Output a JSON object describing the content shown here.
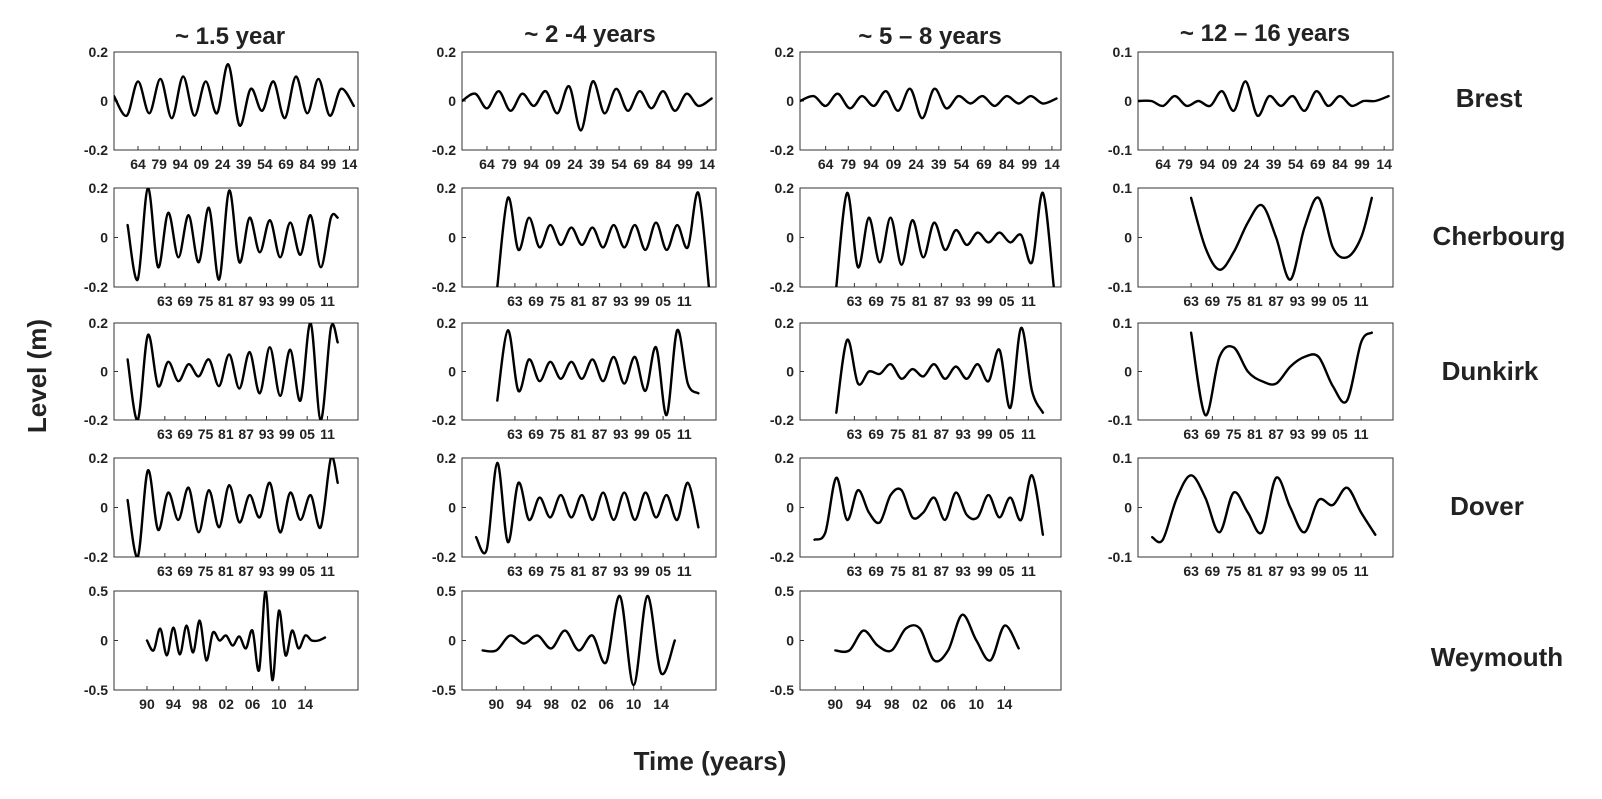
{
  "figure": {
    "ylabel": "Level (m)",
    "xlabel": "Time (years)",
    "columns": [
      "~ 1.5 year",
      "~ 2 -4 years",
      "~ 5 – 8 years",
      "~ 12 – 16 years"
    ],
    "stations": [
      "Brest",
      "Cherbourg",
      "Dunkirk",
      "Dover",
      "Weymouth"
    ]
  },
  "chart_data": [
    {
      "type": "line",
      "panel": "Brest ~1.5 year",
      "x": [
        1847,
        1856,
        1864,
        1872,
        1880,
        1888,
        1896,
        1904,
        1912,
        1920,
        1928,
        1936,
        1944,
        1952,
        1960,
        1968,
        1976,
        1984,
        1992,
        2000,
        2008,
        2017
      ],
      "y": [
        0.02,
        -0.06,
        0.08,
        -0.05,
        0.09,
        -0.07,
        0.1,
        -0.06,
        0.08,
        -0.05,
        0.15,
        -0.1,
        0.05,
        -0.04,
        0.08,
        -0.07,
        0.1,
        -0.05,
        0.09,
        -0.06,
        0.05,
        -0.02
      ],
      "xticks": [
        "64",
        "79",
        "94",
        "09",
        "24",
        "39",
        "54",
        "69",
        "84",
        "99",
        "14"
      ],
      "yticks": [
        "0.2",
        "0",
        "-0.2"
      ],
      "ylim": [
        -0.2,
        0.2
      ],
      "grid": false
    },
    {
      "type": "line",
      "panel": "Brest ~2-4 years",
      "x": [
        1847,
        1856,
        1864,
        1872,
        1880,
        1888,
        1896,
        1904,
        1912,
        1920,
        1928,
        1936,
        1944,
        1952,
        1960,
        1968,
        1976,
        1984,
        1992,
        2000,
        2008,
        2017
      ],
      "y": [
        0.0,
        0.03,
        -0.03,
        0.04,
        -0.04,
        0.03,
        -0.02,
        0.04,
        -0.05,
        0.06,
        -0.12,
        0.08,
        -0.05,
        0.05,
        -0.04,
        0.04,
        -0.03,
        0.04,
        -0.04,
        0.03,
        -0.02,
        0.01
      ],
      "xticks": [
        "64",
        "79",
        "94",
        "09",
        "24",
        "39",
        "54",
        "69",
        "84",
        "99",
        "14"
      ],
      "yticks": [
        "0.2",
        "0",
        "-0.2"
      ],
      "ylim": [
        -0.2,
        0.2
      ],
      "grid": false
    },
    {
      "type": "line",
      "panel": "Brest ~5-8 years",
      "x": [
        1847,
        1856,
        1864,
        1872,
        1880,
        1888,
        1896,
        1904,
        1912,
        1920,
        1928,
        1936,
        1944,
        1952,
        1960,
        1968,
        1976,
        1984,
        1992,
        2000,
        2008,
        2017
      ],
      "y": [
        0.0,
        0.02,
        -0.02,
        0.03,
        -0.03,
        0.02,
        -0.02,
        0.04,
        -0.04,
        0.05,
        -0.07,
        0.05,
        -0.03,
        0.02,
        -0.01,
        0.02,
        -0.02,
        0.02,
        -0.01,
        0.02,
        -0.01,
        0.01
      ],
      "xticks": [
        "64",
        "79",
        "94",
        "09",
        "24",
        "39",
        "54",
        "69",
        "84",
        "99",
        "14"
      ],
      "yticks": [
        "0.2",
        "0",
        "-0.2"
      ],
      "ylim": [
        -0.2,
        0.2
      ],
      "grid": false
    },
    {
      "type": "line",
      "panel": "Brest ~12-16 years",
      "x": [
        1847,
        1856,
        1864,
        1872,
        1880,
        1888,
        1896,
        1904,
        1912,
        1920,
        1928,
        1936,
        1944,
        1952,
        1960,
        1968,
        1976,
        1984,
        1992,
        2000,
        2008,
        2017
      ],
      "y": [
        0.0,
        0.0,
        -0.01,
        0.01,
        -0.01,
        0.0,
        -0.01,
        0.02,
        -0.02,
        0.04,
        -0.03,
        0.01,
        -0.01,
        0.01,
        -0.02,
        0.02,
        -0.01,
        0.01,
        -0.01,
        0.0,
        0.0,
        0.01
      ],
      "xticks": [
        "64",
        "79",
        "94",
        "09",
        "24",
        "39",
        "54",
        "69",
        "84",
        "99",
        "14"
      ],
      "yticks": [
        "0.1",
        "0",
        "-0.1"
      ],
      "ylim": [
        -0.1,
        0.1
      ],
      "grid": false
    },
    {
      "type": "line",
      "panel": "Cherbourg ~1.5 year",
      "x": [
        1952,
        1955,
        1958,
        1961,
        1964,
        1967,
        1970,
        1973,
        1976,
        1979,
        1982,
        1985,
        1988,
        1991,
        1994,
        1997,
        2000,
        2003,
        2006,
        2009,
        2012,
        2014
      ],
      "y": [
        0.05,
        -0.17,
        0.2,
        -0.12,
        0.1,
        -0.08,
        0.09,
        -0.1,
        0.12,
        -0.17,
        0.19,
        -0.1,
        0.08,
        -0.06,
        0.07,
        -0.08,
        0.06,
        -0.07,
        0.09,
        -0.12,
        0.08,
        0.08
      ],
      "xticks": [
        "63",
        "69",
        "75",
        "81",
        "87",
        "93",
        "99",
        "05",
        "11"
      ],
      "yticks": [
        "0.2",
        "0",
        "-0.2"
      ],
      "ylim": [
        -0.2,
        0.2
      ],
      "grid": false
    },
    {
      "type": "line",
      "panel": "Cherbourg ~2-4 years",
      "x": [
        1958,
        1961,
        1964,
        1967,
        1970,
        1973,
        1976,
        1979,
        1982,
        1985,
        1988,
        1991,
        1994,
        1997,
        2000,
        2003,
        2006,
        2009,
        2012,
        2015,
        2018
      ],
      "y": [
        -0.2,
        0.16,
        -0.05,
        0.08,
        -0.04,
        0.05,
        -0.03,
        0.04,
        -0.03,
        0.04,
        -0.04,
        0.05,
        -0.04,
        0.05,
        -0.05,
        0.06,
        -0.05,
        0.05,
        -0.04,
        0.18,
        -0.2
      ],
      "xticks": [
        "63",
        "69",
        "75",
        "81",
        "87",
        "93",
        "99",
        "05",
        "11"
      ],
      "yticks": [
        "0.2",
        "0",
        "-0.2"
      ],
      "ylim": [
        -0.2,
        0.2
      ],
      "grid": false
    },
    {
      "type": "line",
      "panel": "Cherbourg ~5-8 years",
      "x": [
        1958,
        1961,
        1964,
        1967,
        1970,
        1973,
        1976,
        1979,
        1982,
        1985,
        1988,
        1991,
        1994,
        1997,
        2000,
        2003,
        2006,
        2009,
        2012,
        2015,
        2018
      ],
      "y": [
        -0.2,
        0.18,
        -0.12,
        0.08,
        -0.1,
        0.08,
        -0.11,
        0.07,
        -0.08,
        0.06,
        -0.05,
        0.03,
        -0.03,
        0.02,
        -0.02,
        0.02,
        -0.02,
        0.01,
        -0.1,
        0.18,
        -0.2
      ],
      "xticks": [
        "63",
        "69",
        "75",
        "81",
        "87",
        "93",
        "99",
        "05",
        "11"
      ],
      "yticks": [
        "0.2",
        "0",
        "-0.2"
      ],
      "ylim": [
        -0.2,
        0.2
      ],
      "grid": false
    },
    {
      "type": "line",
      "panel": "Cherbourg ~12-16 years",
      "x": [
        1963,
        1967,
        1971,
        1975,
        1979,
        1983,
        1987,
        1991,
        1995,
        1999,
        2003,
        2007,
        2011,
        2014
      ],
      "y": [
        0.08,
        -0.02,
        -0.065,
        -0.03,
        0.03,
        0.065,
        0.0,
        -0.085,
        0.02,
        0.08,
        -0.02,
        -0.04,
        0.0,
        0.08
      ],
      "xticks": [
        "63",
        "69",
        "75",
        "81",
        "87",
        "93",
        "99",
        "05",
        "11"
      ],
      "yticks": [
        "0.1",
        "0",
        "-0.1"
      ],
      "ylim": [
        -0.1,
        0.1
      ],
      "grid": false
    },
    {
      "type": "line",
      "panel": "Dunkirk ~1.5 year",
      "x": [
        1952,
        1955,
        1958,
        1961,
        1964,
        1967,
        1970,
        1973,
        1976,
        1979,
        1982,
        1985,
        1988,
        1991,
        1994,
        1997,
        2000,
        2003,
        2006,
        2009,
        2012,
        2014
      ],
      "y": [
        0.05,
        -0.2,
        0.15,
        -0.06,
        0.04,
        -0.04,
        0.03,
        -0.02,
        0.05,
        -0.06,
        0.07,
        -0.07,
        0.08,
        -0.09,
        0.1,
        -0.1,
        0.09,
        -0.12,
        0.2,
        -0.2,
        0.18,
        0.12
      ],
      "xticks": [
        "63",
        "69",
        "75",
        "81",
        "87",
        "93",
        "99",
        "05",
        "11"
      ],
      "yticks": [
        "0.2",
        "0",
        "-0.2"
      ],
      "ylim": [
        -0.2,
        0.2
      ],
      "grid": false
    },
    {
      "type": "line",
      "panel": "Dunkirk ~2-4 years",
      "x": [
        1958,
        1961,
        1964,
        1967,
        1970,
        1973,
        1976,
        1979,
        1982,
        1985,
        1988,
        1991,
        1994,
        1997,
        2000,
        2003,
        2006,
        2009,
        2012,
        2015
      ],
      "y": [
        -0.12,
        0.17,
        -0.08,
        0.05,
        -0.04,
        0.04,
        -0.03,
        0.04,
        -0.03,
        0.05,
        -0.04,
        0.06,
        -0.05,
        0.06,
        -0.08,
        0.1,
        -0.18,
        0.17,
        -0.05,
        -0.09
      ],
      "xticks": [
        "63",
        "69",
        "75",
        "81",
        "87",
        "93",
        "99",
        "05",
        "11"
      ],
      "yticks": [
        "0.2",
        "0",
        "-0.2"
      ],
      "ylim": [
        -0.2,
        0.2
      ],
      "grid": false
    },
    {
      "type": "line",
      "panel": "Dunkirk ~5-8 years",
      "x": [
        1958,
        1961,
        1964,
        1967,
        1970,
        1973,
        1976,
        1979,
        1982,
        1985,
        1988,
        1991,
        1994,
        1997,
        2000,
        2003,
        2006,
        2009,
        2012,
        2015
      ],
      "y": [
        -0.17,
        0.13,
        -0.05,
        0.0,
        -0.01,
        0.03,
        -0.03,
        0.01,
        -0.02,
        0.03,
        -0.03,
        0.02,
        -0.03,
        0.03,
        -0.04,
        0.09,
        -0.15,
        0.18,
        -0.08,
        -0.17
      ],
      "xticks": [
        "63",
        "69",
        "75",
        "81",
        "87",
        "93",
        "99",
        "05",
        "11"
      ],
      "yticks": [
        "0.2",
        "0",
        "-0.2"
      ],
      "ylim": [
        -0.2,
        0.2
      ],
      "grid": false
    },
    {
      "type": "line",
      "panel": "Dunkirk ~12-16 years",
      "x": [
        1963,
        1967,
        1971,
        1975,
        1979,
        1983,
        1987,
        1991,
        1995,
        1999,
        2003,
        2007,
        2011,
        2014
      ],
      "y": [
        0.08,
        -0.09,
        0.03,
        0.05,
        0.0,
        -0.02,
        -0.025,
        0.01,
        0.03,
        0.03,
        -0.03,
        -0.06,
        0.06,
        0.08
      ],
      "xticks": [
        "63",
        "69",
        "75",
        "81",
        "87",
        "93",
        "99",
        "05",
        "11"
      ],
      "yticks": [
        "0.1",
        "0",
        "-0.1"
      ],
      "ylim": [
        -0.1,
        0.1
      ],
      "grid": false
    },
    {
      "type": "line",
      "panel": "Dover ~1.5 year",
      "x": [
        1952,
        1955,
        1958,
        1961,
        1964,
        1967,
        1970,
        1973,
        1976,
        1979,
        1982,
        1985,
        1988,
        1991,
        1994,
        1997,
        2000,
        2003,
        2006,
        2009,
        2012,
        2014
      ],
      "y": [
        0.03,
        -0.2,
        0.15,
        -0.09,
        0.06,
        -0.05,
        0.08,
        -0.1,
        0.07,
        -0.08,
        0.09,
        -0.06,
        0.05,
        -0.04,
        0.1,
        -0.1,
        0.06,
        -0.05,
        0.05,
        -0.08,
        0.2,
        0.1
      ],
      "xticks": [
        "63",
        "69",
        "75",
        "81",
        "87",
        "93",
        "99",
        "05",
        "11"
      ],
      "yticks": [
        "0.2",
        "0",
        "-0.2"
      ],
      "ylim": [
        -0.2,
        0.2
      ],
      "grid": false
    },
    {
      "type": "line",
      "panel": "Dover ~2-4 years",
      "x": [
        1952,
        1955,
        1958,
        1961,
        1964,
        1967,
        1970,
        1973,
        1976,
        1979,
        1982,
        1985,
        1988,
        1991,
        1994,
        1997,
        2000,
        2003,
        2006,
        2009,
        2012,
        2015
      ],
      "y": [
        -0.12,
        -0.17,
        0.18,
        -0.14,
        0.1,
        -0.05,
        0.04,
        -0.04,
        0.05,
        -0.04,
        0.05,
        -0.05,
        0.06,
        -0.05,
        0.06,
        -0.05,
        0.06,
        -0.04,
        0.05,
        -0.05,
        0.1,
        -0.08
      ],
      "xticks": [
        "63",
        "69",
        "75",
        "81",
        "87",
        "93",
        "99",
        "05",
        "11"
      ],
      "yticks": [
        "0.2",
        "0",
        "-0.2"
      ],
      "ylim": [
        -0.2,
        0.2
      ],
      "grid": false
    },
    {
      "type": "line",
      "panel": "Dover ~5-8 years",
      "x": [
        1952,
        1955,
        1958,
        1961,
        1964,
        1967,
        1970,
        1973,
        1976,
        1979,
        1982,
        1985,
        1988,
        1991,
        1994,
        1997,
        2000,
        2003,
        2006,
        2009,
        2012,
        2015
      ],
      "y": [
        -0.13,
        -0.1,
        0.12,
        -0.05,
        0.07,
        -0.02,
        -0.06,
        0.05,
        0.07,
        -0.04,
        -0.02,
        0.04,
        -0.05,
        0.06,
        -0.03,
        -0.04,
        0.05,
        -0.04,
        0.04,
        -0.05,
        0.13,
        -0.11
      ],
      "xticks": [
        "63",
        "69",
        "75",
        "81",
        "87",
        "93",
        "99",
        "05",
        "11"
      ],
      "yticks": [
        "0.2",
        "0",
        "-0.2"
      ],
      "ylim": [
        -0.2,
        0.2
      ],
      "grid": false
    },
    {
      "type": "line",
      "panel": "Dover ~12-16 years",
      "x": [
        1952,
        1955,
        1959,
        1963,
        1967,
        1971,
        1975,
        1979,
        1983,
        1987,
        1991,
        1995,
        1999,
        2003,
        2007,
        2011,
        2015
      ],
      "y": [
        -0.06,
        -0.065,
        0.02,
        0.065,
        0.02,
        -0.05,
        0.03,
        -0.01,
        -0.05,
        0.06,
        0.0,
        -0.05,
        0.015,
        0.005,
        0.04,
        -0.01,
        -0.055
      ],
      "xticks": [
        "63",
        "69",
        "75",
        "81",
        "87",
        "93",
        "99",
        "05",
        "11"
      ],
      "yticks": [
        "0.1",
        "0",
        "-0.1"
      ],
      "ylim": [
        -0.1,
        0.1
      ],
      "grid": false
    },
    {
      "type": "line",
      "panel": "Weymouth ~1.5 year",
      "x": [
        1990,
        1991,
        1992,
        1993,
        1994,
        1995,
        1996,
        1997,
        1998,
        1999,
        2000,
        2001,
        2002,
        2003,
        2004,
        2005,
        2006,
        2007,
        2008,
        2009,
        2010,
        2011,
        2012,
        2013,
        2014,
        2015,
        2016,
        2017
      ],
      "y": [
        0.0,
        -0.1,
        0.12,
        -0.15,
        0.13,
        -0.14,
        0.15,
        -0.12,
        0.2,
        -0.2,
        0.08,
        0.0,
        0.05,
        -0.05,
        0.04,
        -0.08,
        0.1,
        -0.3,
        0.5,
        -0.4,
        0.3,
        -0.15,
        0.1,
        -0.08,
        0.05,
        0.0,
        0.0,
        0.03
      ],
      "xticks": [
        "90",
        "94",
        "98",
        "02",
        "06",
        "10",
        "14"
      ],
      "yticks": [
        "0.5",
        "0",
        "-0.5"
      ],
      "ylim": [
        -0.5,
        0.5
      ],
      "grid": false
    },
    {
      "type": "line",
      "panel": "Weymouth ~2-4 years",
      "x": [
        1988,
        1990,
        1992,
        1994,
        1996,
        1998,
        2000,
        2002,
        2004,
        2006,
        2008,
        2010,
        2012,
        2014,
        2016
      ],
      "y": [
        -0.1,
        -0.1,
        0.05,
        -0.03,
        0.05,
        -0.08,
        0.1,
        -0.1,
        0.05,
        -0.22,
        0.45,
        -0.45,
        0.45,
        -0.33,
        0.0
      ],
      "xticks": [
        "90",
        "94",
        "98",
        "02",
        "06",
        "10",
        "14"
      ],
      "yticks": [
        "0.5",
        "0",
        "-0.5"
      ],
      "ylim": [
        -0.5,
        0.5
      ],
      "grid": false
    },
    {
      "type": "line",
      "panel": "Weymouth ~5-8 years",
      "x": [
        1990,
        1992,
        1994,
        1996,
        1998,
        2000,
        2002,
        2004,
        2006,
        2008,
        2010,
        2012,
        2014,
        2016
      ],
      "y": [
        -0.1,
        -0.1,
        0.1,
        -0.05,
        -0.1,
        0.12,
        0.12,
        -0.2,
        -0.1,
        0.26,
        0.0,
        -0.2,
        0.15,
        -0.08
      ],
      "xticks": [
        "90",
        "94",
        "98",
        "02",
        "06",
        "10",
        "14"
      ],
      "yticks": [
        "0.5",
        "0",
        "-0.5"
      ],
      "ylim": [
        -0.5,
        0.5
      ],
      "grid": false
    }
  ]
}
